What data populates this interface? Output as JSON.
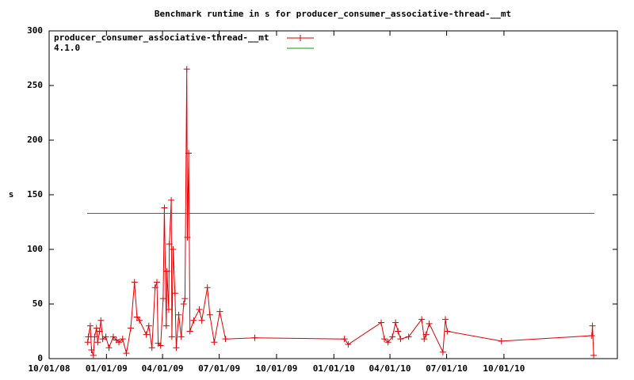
{
  "chart_data": {
    "type": "line",
    "title": "Benchmark runtime in s for producer_consumer_associative-thread-__mt",
    "y_label": "s",
    "xlim": [
      "2008-10-01",
      "2011-04-01"
    ],
    "xticks": [
      {
        "value": "2008-10-01",
        "label": "10/01/08"
      },
      {
        "value": "2009-01-01",
        "label": "01/01/09"
      },
      {
        "value": "2009-04-01",
        "label": "04/01/09"
      },
      {
        "value": "2009-07-01",
        "label": "07/01/09"
      },
      {
        "value": "2009-10-01",
        "label": "10/01/09"
      },
      {
        "value": "2010-01-01",
        "label": "01/01/10"
      },
      {
        "value": "2010-04-01",
        "label": "04/01/10"
      },
      {
        "value": "2010-07-01",
        "label": "07/01/10"
      },
      {
        "value": "2010-10-01",
        "label": "10/01/10"
      }
    ],
    "ylim": [
      0,
      300
    ],
    "yticks": [
      0,
      50,
      100,
      150,
      200,
      250,
      300
    ],
    "legend": "top-left",
    "series": [
      {
        "name": "producer_consumer_associative-thread-__mt",
        "color": "#e00000",
        "marker": "plus",
        "x": [
          "2008-12-02",
          "2008-12-03",
          "2008-12-06",
          "2008-12-08",
          "2008-12-11",
          "2008-12-13",
          "2008-12-16",
          "2008-12-18",
          "2008-12-21",
          "2008-12-23",
          "2008-12-26",
          "2008-12-31",
          "2009-01-05",
          "2009-01-12",
          "2009-01-17",
          "2009-01-21",
          "2009-01-27",
          "2009-02-02",
          "2009-02-09",
          "2009-02-15",
          "2009-02-19",
          "2009-02-23",
          "2009-03-06",
          "2009-03-10",
          "2009-03-15",
          "2009-03-20",
          "2009-03-23",
          "2009-03-25",
          "2009-03-29",
          "2009-04-02",
          "2009-04-04",
          "2009-04-07",
          "2009-04-08",
          "2009-04-11",
          "2009-04-12",
          "2009-04-15",
          "2009-04-16",
          "2009-04-18",
          "2009-04-21",
          "2009-04-23",
          "2009-04-27",
          "2009-05-01",
          "2009-05-05",
          "2009-05-07",
          "2009-05-10",
          "2009-05-11",
          "2009-05-13",
          "2009-05-15",
          "2009-05-21",
          "2009-05-30",
          "2009-06-03",
          "2009-06-12",
          "2009-06-16",
          "2009-06-23",
          "2009-07-02",
          "2009-07-11",
          "2009-08-27",
          "2010-01-18",
          "2010-01-24",
          "2010-03-18",
          "2010-03-23",
          "2010-03-29",
          "2010-04-05",
          "2010-04-10",
          "2010-04-14",
          "2010-04-18",
          "2010-05-01",
          "2010-05-22",
          "2010-05-26",
          "2010-05-29",
          "2010-06-03",
          "2010-06-25",
          "2010-06-29",
          "2010-07-02",
          "2010-09-27",
          "2011-02-19",
          "2011-02-20",
          "2011-02-22"
        ],
        "values": [
          15,
          20,
          30,
          8,
          3,
          20,
          28,
          15,
          25,
          35,
          18,
          20,
          10,
          20,
          17,
          15,
          18,
          5,
          28,
          70,
          38,
          35,
          22,
          30,
          10,
          65,
          70,
          14,
          12,
          55,
          138,
          30,
          80,
          45,
          105,
          145,
          20,
          100,
          60,
          10,
          40,
          20,
          50,
          55,
          265,
          111,
          188,
          25,
          35,
          45,
          35,
          65,
          40,
          15,
          43,
          18,
          19,
          18,
          13,
          33,
          18,
          15,
          20,
          33,
          25,
          18,
          20,
          36,
          18,
          22,
          32,
          6,
          36,
          25,
          16,
          21,
          30,
          3
        ]
      },
      {
        "name": "4.1.0",
        "color": "#00a000",
        "marker": "none",
        "x": [
          "2008-12-01",
          "2011-02-23"
        ],
        "values": [
          133,
          133
        ]
      }
    ]
  }
}
